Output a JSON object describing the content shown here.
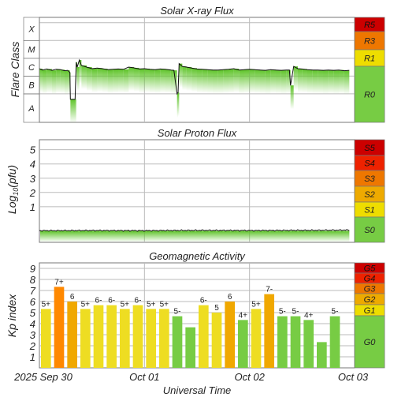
{
  "chart_data": [
    {
      "type": "line",
      "title": "Solar X-ray Flux",
      "ylabel": "Flare Class",
      "y_classes": [
        "A",
        "B",
        "C",
        "M",
        "X"
      ],
      "scale_labels": [
        "R5",
        "R3",
        "R1",
        "R0"
      ],
      "scale_colors": {
        "R5": "#cc0000",
        "R3": "#ee7700",
        "R1": "#eedd00",
        "R0": "#77cc44"
      },
      "x_range_days": [
        0,
        3
      ],
      "y_log_range": [
        -8.6,
        -2.7
      ],
      "series": [
        {
          "x_days": [
            0.0,
            0.03,
            0.07,
            0.12,
            0.16,
            0.2,
            0.24,
            0.27,
            0.29,
            0.295,
            0.34,
            0.35,
            0.36,
            0.38,
            0.4,
            0.45,
            0.5,
            0.55,
            0.6,
            0.65,
            0.7,
            0.75,
            0.8,
            0.85,
            0.9,
            0.95,
            1.0,
            1.05,
            1.1,
            1.15,
            1.2,
            1.25,
            1.28,
            1.31,
            1.32,
            1.33,
            1.36,
            1.4,
            1.45,
            1.5,
            1.55,
            1.6,
            1.65,
            1.7,
            1.75,
            1.8,
            1.85,
            1.9,
            1.95,
            2.0,
            2.05,
            2.1,
            2.15,
            2.2,
            2.25,
            2.3,
            2.35,
            2.38,
            2.39,
            2.42,
            2.46,
            2.5,
            2.55,
            2.6,
            2.65,
            2.7,
            2.75,
            2.8,
            2.85,
            2.9,
            2.95
          ],
          "flux": [
            2.6e-06,
            2.2e-06,
            2.5e-06,
            2.1e-06,
            2.4e-06,
            2.3e-06,
            2e-06,
            2.1e-06,
            1.6e-06,
            5e-08,
            5e-08,
            6e-06,
            3.2e-06,
            8e-06,
            4e-06,
            3.2e-06,
            2.6e-06,
            2.8e-06,
            2.6e-06,
            2.3e-06,
            2.4e-06,
            2.5e-06,
            2.4e-06,
            3.2e-06,
            2.9e-06,
            2.5e-06,
            2.6e-06,
            2.4e-06,
            2.3e-06,
            2.5e-06,
            2.4e-06,
            2.2e-06,
            2.1e-06,
            1e-07,
            1.2e-07,
            5e-06,
            3.5e-06,
            3.2e-06,
            2.8e-06,
            2.5e-06,
            2.4e-06,
            2.3e-06,
            2.2e-06,
            2.2e-06,
            2.3e-06,
            2.4e-06,
            2.6e-06,
            2.2e-06,
            2.3e-06,
            2.4e-06,
            2.3e-06,
            2.2e-06,
            2.1e-06,
            2.3e-06,
            2.2e-06,
            2.1e-06,
            2.2e-06,
            2.2e-06,
            3e-07,
            3.5e-06,
            2.6e-06,
            2.5e-06,
            2.3e-06,
            2.2e-06,
            2.2e-06,
            2.1e-06,
            2.2e-06,
            2.1e-06,
            2.2e-06,
            2e-06,
            2.1e-06
          ]
        }
      ]
    },
    {
      "type": "line",
      "title": "Solar Proton Flux",
      "ylabel": "Log10(pfu)",
      "ylabel_main": "Log",
      "ylabel_sub": "10",
      "ylabel_rest": "(pfu)",
      "yticks": [
        "1",
        "2",
        "3",
        "4",
        "5"
      ],
      "ylim": [
        -1.5,
        5.7
      ],
      "scale_labels": [
        "S5",
        "S4",
        "S3",
        "S2",
        "S1",
        "S0"
      ],
      "scale_colors": {
        "S5": "#cc0000",
        "S4": "#ee2200",
        "S3": "#ee7700",
        "S2": "#eeaa00",
        "S1": "#eedd00",
        "S0": "#77cc44"
      },
      "series": [
        {
          "x_days": [
            0.0,
            0.5,
            1.0,
            1.5,
            2.0,
            2.5,
            2.95
          ],
          "log_pfu": [
            -0.68,
            -0.67,
            -0.68,
            -0.66,
            -0.67,
            -0.66,
            -0.64
          ]
        }
      ]
    },
    {
      "type": "bar",
      "title": "Geomagnetic Activity",
      "ylabel": "Kp index",
      "yticks": [
        "1",
        "2",
        "3",
        "4",
        "5",
        "6",
        "7",
        "8",
        "9"
      ],
      "ylim": [
        0,
        9.5
      ],
      "scale_labels": [
        "G5",
        "G4",
        "G3",
        "G2",
        "G1",
        "G0"
      ],
      "scale_colors": {
        "G5": "#cc0000",
        "G4": "#ee2200",
        "G3": "#ee7700",
        "G2": "#eeaa00",
        "G1": "#eedd00",
        "G0": "#77cc44"
      },
      "bar_colors": {
        "storm": "#ff8800",
        "active": "#eedd00",
        "quiet": "#77cc44"
      },
      "bars": [
        {
          "kp": 5.33,
          "label": "5+"
        },
        {
          "kp": 7.33,
          "label": "7+"
        },
        {
          "kp": 6.0,
          "label": "6"
        },
        {
          "kp": 5.33,
          "label": "5+"
        },
        {
          "kp": 5.67,
          "label": "6-"
        },
        {
          "kp": 5.67,
          "label": "6-"
        },
        {
          "kp": 5.33,
          "label": "5+"
        },
        {
          "kp": 5.67,
          "label": "6-"
        },
        {
          "kp": 5.33,
          "label": "5+"
        },
        {
          "kp": 5.33,
          "label": "5+"
        },
        {
          "kp": 4.67,
          "label": "5-"
        },
        {
          "kp": 3.67,
          "label": ""
        },
        {
          "kp": 5.67,
          "label": "6-"
        },
        {
          "kp": 5.0,
          "label": "5"
        },
        {
          "kp": 6.0,
          "label": "6"
        },
        {
          "kp": 4.33,
          "label": "4+"
        },
        {
          "kp": 5.33,
          "label": "5+"
        },
        {
          "kp": 6.67,
          "label": "7-"
        },
        {
          "kp": 4.67,
          "label": "5-"
        },
        {
          "kp": 4.67,
          "label": "5-"
        },
        {
          "kp": 4.33,
          "label": "4+"
        },
        {
          "kp": 2.33,
          "label": ""
        },
        {
          "kp": 4.67,
          "label": "5-"
        }
      ]
    }
  ],
  "xaxis": {
    "title": "Universal Time",
    "ticks": [
      "2025 Sep 30",
      "Oct 01",
      "Oct 02",
      "Oct 03"
    ]
  }
}
